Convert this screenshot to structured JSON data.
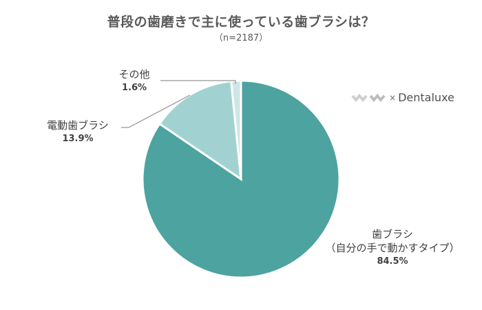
{
  "header": {
    "title": "普段の歯磨きで主に使っている歯ブラシは？",
    "subtitle": "（n=2187）"
  },
  "logo": {
    "times": "×",
    "brand": "Dentaluxe"
  },
  "labels": {
    "manual": {
      "line1": "歯ブラシ",
      "line2": "（自分の手で動かすタイプ）",
      "pct": "84.5%"
    },
    "electric": {
      "name": "電動歯ブラシ",
      "pct": "13.9%"
    },
    "other": {
      "name": "その他",
      "pct": "1.6%"
    }
  },
  "colors": {
    "manual": "#4DA3A0",
    "electric": "#A1D2D1",
    "other": "#CFE6E6",
    "leader": "#A6A6A6"
  },
  "chart_data": {
    "type": "pie",
    "title": "普段の歯磨きで主に使っている歯ブラシは？",
    "subtitle": "（n=2187）",
    "categories": [
      "歯ブラシ（自分の手で動かすタイプ）",
      "電動歯ブラシ",
      "その他"
    ],
    "values": [
      84.5,
      13.9,
      1.6
    ],
    "unit": "%",
    "start_angle": "12 o'clock, clockwise",
    "legend": "none (data labels with leader lines)"
  }
}
